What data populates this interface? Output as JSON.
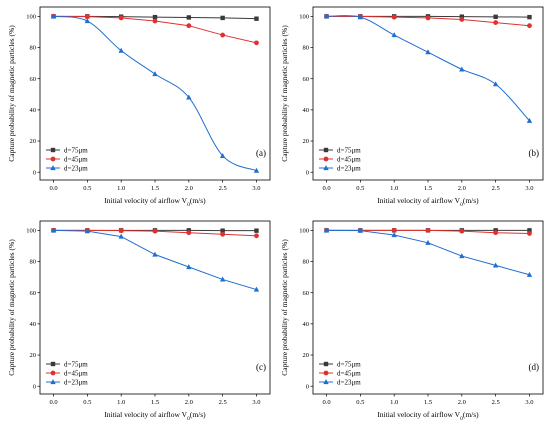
{
  "chart_data": [
    {
      "type": "line",
      "panel_label": "(a)",
      "xlabel_main": "Initial velocity of airflow V",
      "xlabel_sub": "0",
      "xlabel_unit": "(m/s)",
      "ylabel": "Capture probability of magnetic particles (%)",
      "x": [
        0.0,
        0.5,
        1.0,
        1.5,
        2.0,
        2.5,
        3.0
      ],
      "xticks": [
        "0.0",
        "0.5",
        "1.0",
        "1.5",
        "2.0",
        "2.5",
        "3.0"
      ],
      "yticks": [
        "0",
        "20",
        "40",
        "60",
        "80",
        "100"
      ],
      "xlim": [
        -0.2,
        3.2
      ],
      "ylim": [
        -5,
        106
      ],
      "legend_position": "lower-left",
      "series": [
        {
          "name": "d=75μm",
          "color": "#3a3a3a",
          "marker": "square",
          "smooth": false,
          "values": [
            100,
            100,
            99.8,
            99.5,
            99.3,
            99,
            98.5
          ]
        },
        {
          "name": "d=45μm",
          "color": "#e03030",
          "marker": "circle",
          "smooth": false,
          "values": [
            100,
            99.8,
            99,
            97,
            94,
            88,
            83
          ]
        },
        {
          "name": "d=23μm",
          "color": "#1f6fd0",
          "marker": "triangle",
          "smooth": true,
          "values": [
            100,
            97,
            78,
            63,
            48,
            10.5,
            1
          ]
        }
      ]
    },
    {
      "type": "line",
      "panel_label": "(b)",
      "xlabel_main": "Initial velocity of airflow V",
      "xlabel_sub": "0",
      "xlabel_unit": "(m/s)",
      "ylabel": "Capture probability of magnetic particles (%)",
      "x": [
        0.0,
        0.5,
        1.0,
        1.5,
        2.0,
        2.5,
        3.0
      ],
      "xticks": [
        "0.0",
        "0.5",
        "1.0",
        "1.5",
        "2.0",
        "2.5",
        "3.0"
      ],
      "yticks": [
        "0",
        "20",
        "40",
        "60",
        "80",
        "100"
      ],
      "xlim": [
        -0.2,
        3.2
      ],
      "ylim": [
        -5,
        106
      ],
      "legend_position": "lower-left",
      "series": [
        {
          "name": "d=75μm",
          "color": "#3a3a3a",
          "marker": "square",
          "smooth": false,
          "values": [
            100,
            100,
            100,
            100,
            99.8,
            99.7,
            99.5
          ]
        },
        {
          "name": "d=45μm",
          "color": "#e03030",
          "marker": "circle",
          "smooth": false,
          "values": [
            100,
            100,
            99.5,
            99,
            98,
            96,
            94
          ]
        },
        {
          "name": "d=23μm",
          "color": "#1f6fd0",
          "marker": "triangle",
          "smooth": true,
          "values": [
            100,
            99.5,
            88,
            77,
            66,
            56.5,
            33
          ]
        }
      ]
    },
    {
      "type": "line",
      "panel_label": "(c)",
      "xlabel_main": "Initial velocity of airflow V",
      "xlabel_sub": "0",
      "xlabel_unit": "(m/s)",
      "ylabel": "Capture probability of magnetic particles (%)",
      "x": [
        0.0,
        0.5,
        1.0,
        1.5,
        2.0,
        2.5,
        3.0
      ],
      "xticks": [
        "0.0",
        "0.5",
        "1.0",
        "1.5",
        "2.0",
        "2.5",
        "3.0"
      ],
      "yticks": [
        "0",
        "20",
        "40",
        "60",
        "80",
        "100"
      ],
      "xlim": [
        -0.2,
        3.2
      ],
      "ylim": [
        -5,
        106
      ],
      "legend_position": "lower-left",
      "series": [
        {
          "name": "d=75μm",
          "color": "#3a3a3a",
          "marker": "square",
          "smooth": false,
          "values": [
            100,
            100,
            100,
            100,
            100,
            99.8,
            99.8
          ]
        },
        {
          "name": "d=45μm",
          "color": "#e03030",
          "marker": "circle",
          "smooth": false,
          "values": [
            100,
            100,
            99.8,
            99.5,
            98.5,
            97.5,
            96.5
          ]
        },
        {
          "name": "d=23μm",
          "color": "#1f6fd0",
          "marker": "triangle",
          "smooth": false,
          "values": [
            100,
            99.5,
            96,
            84.5,
            76.5,
            68.5,
            62
          ]
        }
      ]
    },
    {
      "type": "line",
      "panel_label": "(d)",
      "xlabel_main": "Initial velocity of airflow V",
      "xlabel_sub": "0",
      "xlabel_unit": "(m/s)",
      "ylabel": "Capture probability of magnetic particles (%)",
      "x": [
        0.0,
        0.5,
        1.0,
        1.5,
        2.0,
        2.5,
        3.0
      ],
      "xticks": [
        "0.0",
        "0.5",
        "1.0",
        "1.5",
        "2.0",
        "2.5",
        "3.0"
      ],
      "yticks": [
        "0",
        "20",
        "40",
        "60",
        "80",
        "100"
      ],
      "xlim": [
        -0.2,
        3.2
      ],
      "ylim": [
        -5,
        106
      ],
      "legend_position": "lower-left",
      "series": [
        {
          "name": "d=75μm",
          "color": "#3a3a3a",
          "marker": "square",
          "smooth": false,
          "values": [
            100,
            100,
            100,
            100,
            100,
            100,
            100
          ]
        },
        {
          "name": "d=45μm",
          "color": "#e03030",
          "marker": "circle",
          "smooth": false,
          "values": [
            100,
            100,
            100,
            100,
            99.5,
            98.5,
            98
          ]
        },
        {
          "name": "d=23μm",
          "color": "#1f6fd0",
          "marker": "triangle",
          "smooth": false,
          "values": [
            100,
            99.8,
            97,
            92,
            83.5,
            77.5,
            71.5
          ]
        }
      ]
    }
  ]
}
